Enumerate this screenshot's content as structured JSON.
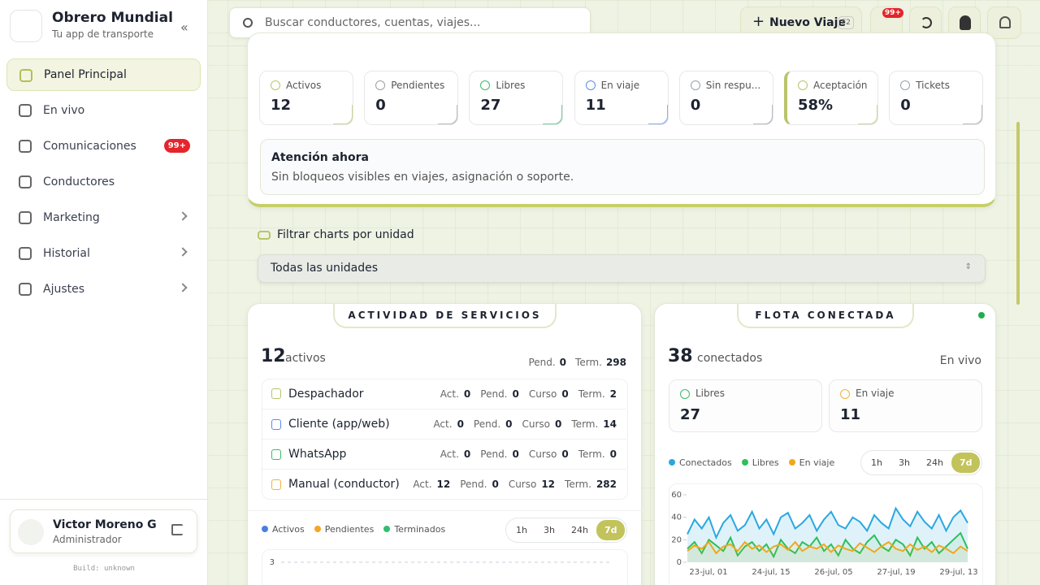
{
  "sidebar": {
    "brand": "Obrero Mundial",
    "tagline": "Tu app de transporte",
    "nav": [
      {
        "label": "Panel Principal",
        "active": true
      },
      {
        "label": "En vivo"
      },
      {
        "label": "Comunicaciones",
        "badge": "99+"
      },
      {
        "label": "Conductores"
      },
      {
        "label": "Marketing",
        "submenu": true
      },
      {
        "label": "Historial",
        "submenu": true
      },
      {
        "label": "Ajustes",
        "submenu": true
      }
    ],
    "user": {
      "name": "Victor Moreno G",
      "role": "Administrador"
    },
    "build": "Build: unknown"
  },
  "topbar": {
    "search": "Buscar conductores, cuentas, viajes...",
    "new_trip": "Nuevo Viaje",
    "shortcut": "F2",
    "badge": "99+"
  },
  "summary": {
    "stats": [
      {
        "label": "Activos",
        "value": 12,
        "color": "#b9c46a"
      },
      {
        "label": "Pendientes",
        "value": 0,
        "color": "#9aa0a8"
      },
      {
        "label": "Libres",
        "value": 27,
        "color": "#3fb96b"
      },
      {
        "label": "En viaje",
        "value": 11,
        "color": "#5b8def"
      },
      {
        "label": "Sin respu...",
        "value": 0,
        "color": "#9aa0a8"
      },
      {
        "label": "Aceptación",
        "value": "58%",
        "color": "#b9c46a"
      },
      {
        "label": "Tickets",
        "value": 0,
        "color": "#9aa0a8"
      }
    ],
    "attention": {
      "title": "Atención ahora",
      "text": "Sin bloqueos visibles en viajes, asignación o soporte."
    }
  },
  "filter": {
    "label": "Filtrar charts por unidad",
    "selected": "Todas las unidades"
  },
  "activity": {
    "title": "ACTIVIDAD DE SERVICIOS",
    "count": 12,
    "count_label": "activos",
    "pend_label": "Pend.",
    "pend": 0,
    "term_label": "Term.",
    "term": 298,
    "columns": [
      "Act.",
      "Pend.",
      "Curso",
      "Term."
    ],
    "rows": [
      {
        "name": "Despachador",
        "color": "#b9c46a",
        "values": [
          0,
          0,
          0,
          2
        ]
      },
      {
        "name": "Cliente (app/web)",
        "color": "#5b8def",
        "values": [
          0,
          0,
          0,
          14
        ]
      },
      {
        "name": "WhatsApp",
        "color": "#3fb96b",
        "values": [
          0,
          0,
          0,
          0
        ]
      },
      {
        "name": "Manual (conductor)",
        "color": "#f0b43c",
        "values": [
          12,
          0,
          12,
          282
        ]
      }
    ],
    "legend": [
      {
        "name": "Activos",
        "color": "#4a7fe0"
      },
      {
        "name": "Pendientes",
        "color": "#f5a623"
      },
      {
        "name": "Terminados",
        "color": "#2fbf71"
      }
    ],
    "ranges": [
      "1h",
      "3h",
      "24h",
      "7d"
    ],
    "yticks": [
      3
    ]
  },
  "fleet": {
    "title": "FLOTA CONECTADA",
    "count": 38,
    "count_label": "conectados",
    "live": "En vivo",
    "cards": [
      {
        "label": "Libres",
        "value": 27,
        "color": "#3fb96b"
      },
      {
        "label": "En viaje",
        "value": 11,
        "color": "#f0b43c"
      }
    ],
    "ranges": [
      "1h",
      "3h",
      "24h",
      "7d"
    ],
    "chart": {
      "type": "line",
      "ylim": [
        0,
        60
      ],
      "yticks": [
        0,
        20,
        40,
        60
      ],
      "xtick_labels": [
        "23-jul, 01",
        "24-jul, 15",
        "26-jul, 05",
        "27-jul, 19",
        "29-jul, 13"
      ],
      "series": [
        {
          "name": "Conectados",
          "color": "#2aa8e0",
          "values": [
            25,
            38,
            30,
            40,
            22,
            35,
            42,
            28,
            33,
            45,
            30,
            38,
            25,
            40,
            44,
            30,
            35,
            42,
            28,
            38,
            45,
            33,
            30,
            40,
            36,
            28,
            42,
            35,
            30,
            48,
            38,
            32,
            45,
            36,
            30,
            42,
            28,
            40,
            46,
            35
          ]
        },
        {
          "name": "Libres",
          "color": "#2fbf5a",
          "values": [
            12,
            18,
            8,
            20,
            15,
            10,
            22,
            6,
            14,
            18,
            10,
            16,
            5,
            20,
            12,
            8,
            18,
            14,
            22,
            10,
            16,
            6,
            20,
            12,
            8,
            18,
            24,
            14,
            10,
            20,
            16,
            6,
            22,
            12,
            18,
            8,
            14,
            20,
            26,
            12
          ]
        },
        {
          "name": "En viaje",
          "color": "#f0a81c",
          "values": [
            10,
            15,
            12,
            18,
            8,
            14,
            16,
            10,
            18,
            12,
            15,
            9,
            14,
            16,
            11,
            18,
            10,
            14,
            12,
            16,
            9,
            15,
            12,
            10,
            17,
            13,
            9,
            14,
            18,
            12,
            10,
            16,
            11,
            14,
            9,
            15,
            12,
            8,
            14,
            10
          ]
        }
      ]
    }
  }
}
